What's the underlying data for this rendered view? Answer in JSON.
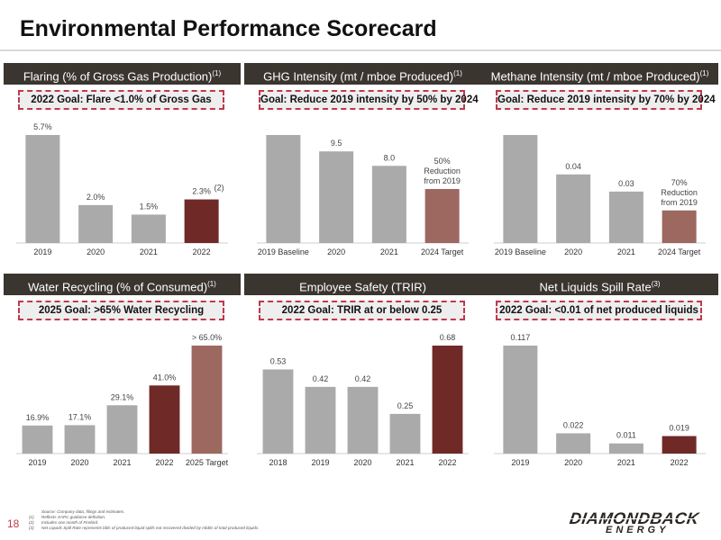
{
  "page": {
    "title": "Environmental Performance Scorecard",
    "page_number": "18",
    "footnotes": [
      {
        "num": "",
        "text": "Source: Company data, filings and estimates."
      },
      {
        "num": "(1)",
        "text": "Reflects XAPC guidance definition."
      },
      {
        "num": "(2)",
        "text": "Includes one month of Firebird."
      },
      {
        "num": "(3)",
        "text": "Net Liquids Spill Rate represents bbls of produced liquid spills not recovered divided by mbbls of total produced liquids."
      }
    ],
    "logo": {
      "main": "DIAMONDBACK",
      "sub": "ENERGY"
    }
  },
  "colors": {
    "gray": "#aaaaaa",
    "dark_red": "#6f2a28",
    "light_red": "#9c6860",
    "header_bg": "#3b3530",
    "goal_border": "#c0394b"
  },
  "panels": [
    {
      "header": "Flaring (% of Gross Gas Production)",
      "header_sup": "(1)",
      "goal": "2022 Goal: Flare <1.0% of Gross Gas",
      "chart_data": {
        "type": "bar",
        "categories": [
          "2019",
          "2020",
          "2021",
          "2022"
        ],
        "values": [
          5.7,
          2.0,
          1.5,
          2.3
        ],
        "labels": [
          "5.7%",
          "2.0%",
          "1.5%",
          "2.3%"
        ],
        "label_sup": [
          "",
          "",
          "",
          "(2)"
        ],
        "colors": [
          "#aaaaaa",
          "#aaaaaa",
          "#aaaaaa",
          "#6f2a28"
        ],
        "ylim": [
          0,
          5.7
        ]
      }
    },
    {
      "header": "GHG Intensity (mt / mboe Produced)",
      "header_sup": "(1)",
      "goal": "Goal: Reduce 2019 intensity by 50% by 2024",
      "chart_data": {
        "type": "bar",
        "categories": [
          "2019 Baseline",
          "2020",
          "2021",
          "2024 Target"
        ],
        "values": [
          11.2,
          9.5,
          8.0,
          5.6
        ],
        "labels": [
          "",
          "9.5",
          "8.0",
          "50% Reduction from 2019"
        ],
        "label_sup": [
          "",
          "",
          "",
          ""
        ],
        "colors": [
          "#aaaaaa",
          "#aaaaaa",
          "#aaaaaa",
          "#9c6860"
        ],
        "ylim": [
          0,
          11.2
        ]
      }
    },
    {
      "header": "Methane Intensity (mt / mboe Produced)",
      "header_sup": "(1)",
      "goal": "Goal: Reduce 2019 intensity by 70% by 2024",
      "chart_data": {
        "type": "bar",
        "categories": [
          "2019 Baseline",
          "2020",
          "2021",
          "2024 Target"
        ],
        "values": [
          0.063,
          0.04,
          0.03,
          0.019
        ],
        "labels": [
          "",
          "0.04",
          "0.03",
          "70% Reduction from 2019"
        ],
        "label_sup": [
          "",
          "",
          "",
          ""
        ],
        "colors": [
          "#aaaaaa",
          "#aaaaaa",
          "#aaaaaa",
          "#9c6860"
        ],
        "ylim": [
          0,
          0.063
        ]
      }
    },
    {
      "header": "Water Recycling (% of Consumed)",
      "header_sup": "(1)",
      "goal": "2025 Goal: >65% Water Recycling",
      "chart_data": {
        "type": "bar",
        "categories": [
          "2019",
          "2020",
          "2021",
          "2022",
          "2025 Target"
        ],
        "values": [
          16.9,
          17.1,
          29.1,
          41.0,
          65.0
        ],
        "labels": [
          "16.9%",
          "17.1%",
          "29.1%",
          "41.0%",
          "> 65.0%"
        ],
        "label_sup": [
          "",
          "",
          "",
          "",
          ""
        ],
        "colors": [
          "#aaaaaa",
          "#aaaaaa",
          "#aaaaaa",
          "#6f2a28",
          "#9c6860"
        ],
        "ylim": [
          0,
          65
        ]
      }
    },
    {
      "header": "Employee Safety (TRIR)",
      "header_sup": "",
      "goal": "2022 Goal: TRIR at or below 0.25",
      "chart_data": {
        "type": "bar",
        "categories": [
          "2018",
          "2019",
          "2020",
          "2021",
          "2022"
        ],
        "values": [
          0.53,
          0.42,
          0.42,
          0.25,
          0.68
        ],
        "labels": [
          "0.53",
          "0.42",
          "0.42",
          "0.25",
          "0.68"
        ],
        "label_sup": [
          "",
          "",
          "",
          "",
          ""
        ],
        "colors": [
          "#aaaaaa",
          "#aaaaaa",
          "#aaaaaa",
          "#aaaaaa",
          "#6f2a28"
        ],
        "ylim": [
          0,
          0.68
        ]
      }
    },
    {
      "header": "Net Liquids Spill Rate",
      "header_sup": "(3)",
      "goal": "2022 Goal: <0.01 of net produced liquids",
      "chart_data": {
        "type": "bar",
        "categories": [
          "2019",
          "2020",
          "2021",
          "2022"
        ],
        "values": [
          0.117,
          0.022,
          0.011,
          0.019
        ],
        "labels": [
          "0.117",
          "0.022",
          "0.011",
          "0.019"
        ],
        "label_sup": [
          "",
          "",
          "",
          ""
        ],
        "colors": [
          "#aaaaaa",
          "#aaaaaa",
          "#aaaaaa",
          "#6f2a28"
        ],
        "ylim": [
          0,
          0.117
        ]
      }
    }
  ]
}
